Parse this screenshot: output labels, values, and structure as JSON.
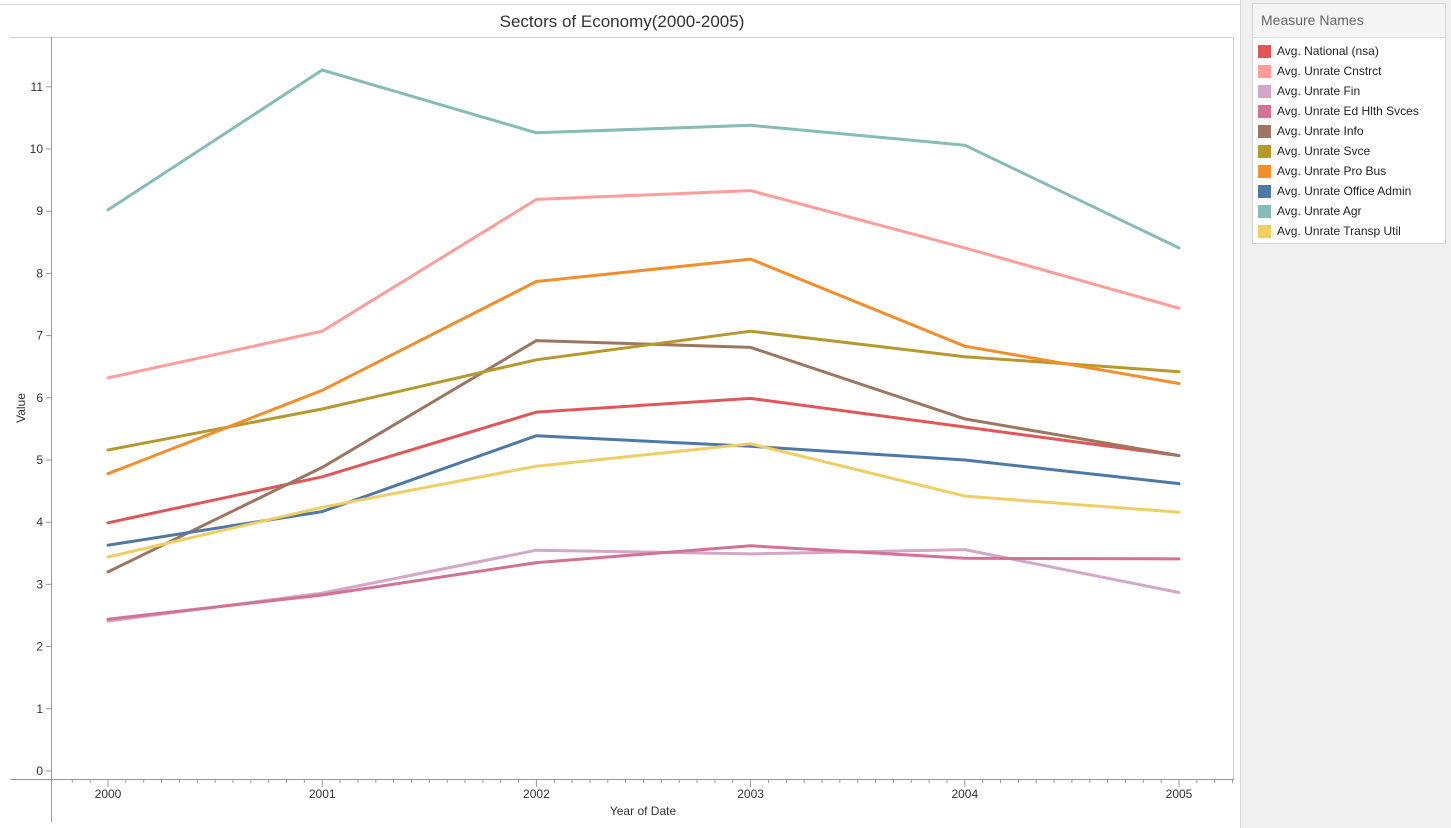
{
  "legend": {
    "title": "Measure Names"
  },
  "chart_data": {
    "type": "line",
    "title": "Sectors of Economy(2000-2005)",
    "xlabel": "Year of Date",
    "ylabel": "Value",
    "x": [
      "2000",
      "2001",
      "2002",
      "2003",
      "2004",
      "2005"
    ],
    "yticks": [
      "0",
      "1",
      "2",
      "3",
      "4",
      "5",
      "6",
      "7",
      "8",
      "9",
      "10",
      "11"
    ],
    "ylim": [
      0,
      11.8
    ],
    "grid": false,
    "legend_position": "right",
    "series": [
      {
        "name": "Avg. National (nsa)",
        "color": "#e15759",
        "values": [
          3.99,
          4.73,
          5.77,
          5.99,
          5.53,
          5.07
        ]
      },
      {
        "name": "Avg. Unrate Cnstrct",
        "color": "#ff9d9a",
        "values": [
          6.32,
          7.07,
          9.19,
          9.33,
          8.41,
          7.44
        ]
      },
      {
        "name": "Avg. Unrate Fin",
        "color": "#d4a6c8",
        "values": [
          2.41,
          2.86,
          3.55,
          3.49,
          3.56,
          2.87
        ]
      },
      {
        "name": "Avg. Unrate Ed Hlth Svces",
        "color": "#d37295",
        "values": [
          2.44,
          2.83,
          3.35,
          3.62,
          3.42,
          3.41
        ]
      },
      {
        "name": "Avg. Unrate Info",
        "color": "#9d7660",
        "values": [
          3.2,
          4.88,
          6.92,
          6.81,
          5.66,
          5.07
        ]
      },
      {
        "name": "Avg. Unrate Svce",
        "color": "#b6992d",
        "values": [
          5.16,
          5.82,
          6.61,
          7.07,
          6.66,
          6.42
        ]
      },
      {
        "name": "Avg. Unrate Pro Bus",
        "color": "#f28e2b",
        "values": [
          4.78,
          6.12,
          7.87,
          8.23,
          6.83,
          6.23
        ]
      },
      {
        "name": "Avg. Unrate Office Admin",
        "color": "#4e79a7",
        "values": [
          3.63,
          4.17,
          5.39,
          5.22,
          5.0,
          4.62
        ]
      },
      {
        "name": "Avg. Unrate Agr",
        "color": "#86bcb6",
        "values": [
          9.02,
          11.27,
          10.26,
          10.38,
          10.06,
          8.41
        ]
      },
      {
        "name": "Avg. Unrate Transp Util",
        "color": "#f1ce63",
        "values": [
          3.44,
          4.24,
          4.9,
          5.26,
          4.42,
          4.16
        ]
      }
    ]
  }
}
